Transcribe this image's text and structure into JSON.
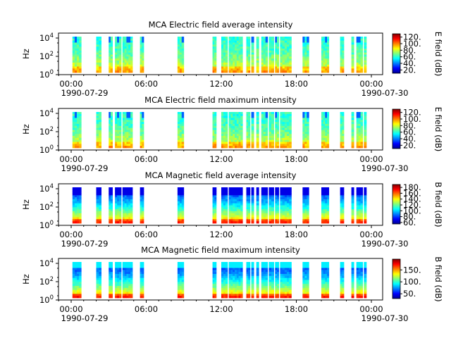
{
  "chart_data": [
    {
      "type": "heatmap",
      "title": "MCA  Electric field average intensity",
      "ylabel": "Hz",
      "colorbar_label": "E field (dB)",
      "y_scale": "log",
      "yticks": [
        "10^0",
        "10^2",
        "10^4"
      ],
      "xticks": [
        "00:00",
        "06:00",
        "12:00",
        "18:00",
        "00:00"
      ],
      "date_labels": [
        "1990-07-29",
        "1990-07-30"
      ],
      "colorbar_ticks": [
        "20.",
        "40.",
        "60.",
        "80.",
        "100.",
        "120."
      ],
      "colorbar_range": [
        10,
        130
      ],
      "data_intervals_hours": [
        [
          0.1,
          0.8
        ],
        [
          2.0,
          2.4
        ],
        [
          3.0,
          3.3
        ],
        [
          3.5,
          4.0
        ],
        [
          4.1,
          4.9
        ],
        [
          5.5,
          5.8
        ],
        [
          8.5,
          9.0
        ],
        [
          11.3,
          11.6
        ],
        [
          12.0,
          12.5
        ],
        [
          12.6,
          13.7
        ],
        [
          14.0,
          14.3
        ],
        [
          14.4,
          14.6
        ],
        [
          14.8,
          15.0
        ],
        [
          15.2,
          15.7
        ],
        [
          15.8,
          16.2
        ],
        [
          16.3,
          16.6
        ],
        [
          16.7,
          17.6
        ],
        [
          18.5,
          19.0
        ],
        [
          20.0,
          20.6
        ],
        [
          21.5,
          21.8
        ],
        [
          22.4,
          22.6
        ],
        [
          22.8,
          23.3
        ],
        [
          23.4,
          23.6
        ]
      ],
      "scheme": "E"
    },
    {
      "type": "heatmap",
      "title": "MCA  Electric field maximum intensity",
      "ylabel": "Hz",
      "colorbar_label": "E field (dB)",
      "y_scale": "log",
      "yticks": [
        "10^0",
        "10^2",
        "10^4"
      ],
      "xticks": [
        "00:00",
        "06:00",
        "12:00",
        "18:00",
        "00:00"
      ],
      "date_labels": [
        "1990-07-29",
        "1990-07-30"
      ],
      "colorbar_ticks": [
        "20.",
        "40.",
        "60.",
        "80.",
        "100.",
        "120."
      ],
      "colorbar_range": [
        10,
        130
      ],
      "data_intervals_hours": [
        [
          0.1,
          0.8
        ],
        [
          2.0,
          2.4
        ],
        [
          3.0,
          3.3
        ],
        [
          3.5,
          4.0
        ],
        [
          4.1,
          4.9
        ],
        [
          5.5,
          5.8
        ],
        [
          8.5,
          9.0
        ],
        [
          11.3,
          11.6
        ],
        [
          12.0,
          12.5
        ],
        [
          12.6,
          13.7
        ],
        [
          14.0,
          14.3
        ],
        [
          14.4,
          14.6
        ],
        [
          14.8,
          15.0
        ],
        [
          15.2,
          15.7
        ],
        [
          15.8,
          16.2
        ],
        [
          16.3,
          16.6
        ],
        [
          16.7,
          17.6
        ],
        [
          18.5,
          19.0
        ],
        [
          20.0,
          20.6
        ],
        [
          21.5,
          21.8
        ],
        [
          22.4,
          22.6
        ],
        [
          22.8,
          23.3
        ],
        [
          23.4,
          23.6
        ]
      ],
      "scheme": "E"
    },
    {
      "type": "heatmap",
      "title": "MCA  Magnetic field average intensity",
      "ylabel": "Hz",
      "colorbar_label": "B field (dB)",
      "y_scale": "log",
      "yticks": [
        "10^0",
        "10^2",
        "10^4"
      ],
      "xticks": [
        "00:00",
        "06:00",
        "12:00",
        "18:00",
        "00:00"
      ],
      "date_labels": [
        "1990-07-29",
        "1990-07-30"
      ],
      "colorbar_ticks": [
        "60.",
        "80.",
        "100.",
        "120.",
        "140.",
        "160.",
        "180."
      ],
      "colorbar_range": [
        55,
        190
      ],
      "data_intervals_hours": [
        [
          0.1,
          0.8
        ],
        [
          2.0,
          2.4
        ],
        [
          3.0,
          3.3
        ],
        [
          3.5,
          4.0
        ],
        [
          4.1,
          4.9
        ],
        [
          5.5,
          5.8
        ],
        [
          8.5,
          9.0
        ],
        [
          11.3,
          11.6
        ],
        [
          12.0,
          12.5
        ],
        [
          12.6,
          13.7
        ],
        [
          14.0,
          14.3
        ],
        [
          14.4,
          14.6
        ],
        [
          14.8,
          15.0
        ],
        [
          15.2,
          15.7
        ],
        [
          15.8,
          16.2
        ],
        [
          16.3,
          16.6
        ],
        [
          16.7,
          17.6
        ],
        [
          18.5,
          19.0
        ],
        [
          20.0,
          20.6
        ],
        [
          21.5,
          21.8
        ],
        [
          22.4,
          22.6
        ],
        [
          22.8,
          23.3
        ],
        [
          23.4,
          23.6
        ]
      ],
      "scheme": "B"
    },
    {
      "type": "heatmap",
      "title": "MCA  Magnetic field maximum intensity",
      "ylabel": "Hz",
      "colorbar_label": "B field (dB)",
      "y_scale": "log",
      "yticks": [
        "10^0",
        "10^2",
        "10^4"
      ],
      "xticks": [
        "00:00",
        "06:00",
        "12:00",
        "18:00",
        "00:00"
      ],
      "date_labels": [
        "1990-07-29",
        "1990-07-30"
      ],
      "colorbar_ticks": [
        "50.",
        "100.",
        "150."
      ],
      "colorbar_range": [
        30,
        195
      ],
      "data_intervals_hours": [
        [
          0.1,
          0.8
        ],
        [
          2.0,
          2.4
        ],
        [
          3.0,
          3.3
        ],
        [
          3.5,
          4.0
        ],
        [
          4.1,
          4.9
        ],
        [
          5.5,
          5.8
        ],
        [
          8.5,
          9.0
        ],
        [
          11.3,
          11.6
        ],
        [
          12.0,
          12.5
        ],
        [
          12.6,
          13.7
        ],
        [
          14.0,
          14.3
        ],
        [
          14.4,
          14.6
        ],
        [
          14.8,
          15.0
        ],
        [
          15.2,
          15.7
        ],
        [
          15.8,
          16.2
        ],
        [
          16.3,
          16.6
        ],
        [
          16.7,
          17.6
        ],
        [
          18.5,
          19.0
        ],
        [
          20.0,
          20.6
        ],
        [
          21.5,
          21.8
        ],
        [
          22.4,
          22.6
        ],
        [
          22.8,
          23.3
        ],
        [
          23.4,
          23.6
        ]
      ],
      "scheme": "B"
    }
  ]
}
